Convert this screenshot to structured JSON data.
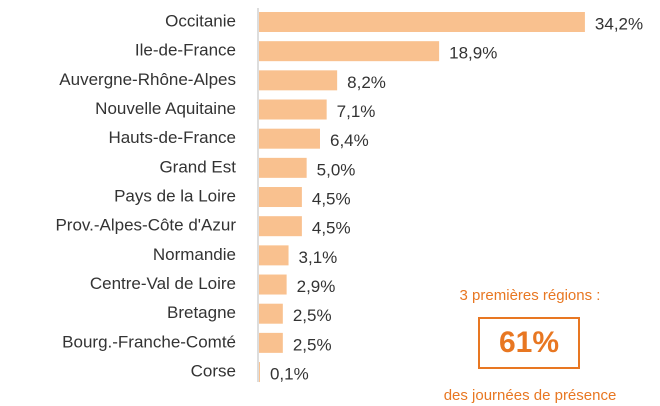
{
  "chart_data": {
    "type": "bar",
    "orientation": "horizontal",
    "color": "#f9c18f",
    "categories": [
      "Occitanie",
      "Ile-de-France",
      "Auvergne-Rhône-Alpes",
      "Nouvelle Aquitaine",
      "Hauts-de-France",
      "Grand Est",
      "Pays de la Loire",
      "Prov.-Alpes-Côte d'Azur",
      "Normandie",
      "Centre-Val de Loire",
      "Bretagne",
      "Bourg.-Franche-Comté",
      "Corse"
    ],
    "values": [
      34.2,
      18.9,
      8.2,
      7.1,
      6.4,
      5.0,
      4.5,
      4.5,
      3.1,
      2.9,
      2.5,
      2.5,
      0.1
    ],
    "value_labels": [
      "34,2%",
      "18,9%",
      "8,2%",
      "7,1%",
      "6,4%",
      "5,0%",
      "4,5%",
      "4,5%",
      "3,1%",
      "2,9%",
      "2,5%",
      "2,5%",
      "0,1%"
    ],
    "annotations": [
      "3 premières régions :",
      "61%",
      "des journées de présence"
    ]
  }
}
